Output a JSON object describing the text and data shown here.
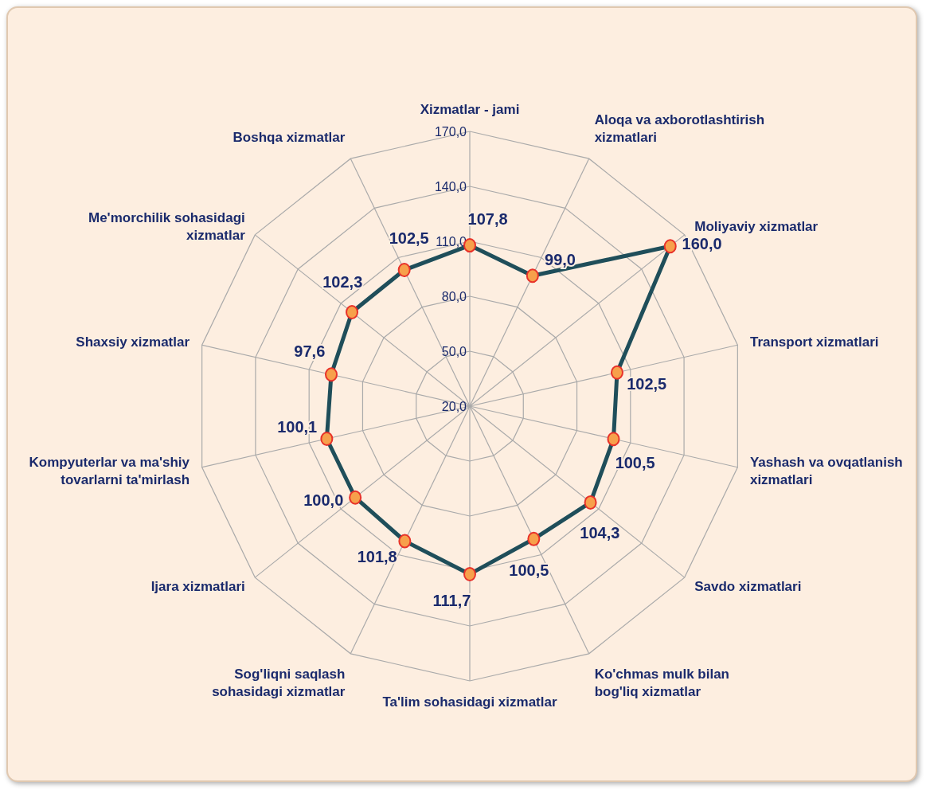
{
  "chart_data": {
    "type": "radar",
    "categories": [
      "Xizmatlar - jami",
      "Aloqa va axborotlashtirish\nxizmatlari",
      "Moliyaviy xizmatlar",
      "Transport xizmatlari",
      "Yashash va ovqatlanish\nxizmatlari",
      "Savdo xizmatlari",
      "Ko'chmas mulk bilan\nbog'liq xizmatlar",
      "Ta'lim sohasidagi xizmatlar",
      "Sog'liqni saqlash\nsohasidagi xizmatlar",
      "Ijara xizmatlari",
      "Kompyuterlar va ma'shiy\ntovarlarni ta'mirlash",
      "Shaxsiy xizmatlar",
      "Me'morchilik sohasidagi\nxizmatlar",
      "Boshqa xizmatlar"
    ],
    "series": [
      {
        "color": "#1f4e5a",
        "values": [
          107.8,
          99.0,
          160.0,
          102.5,
          100.5,
          104.3,
          100.5,
          111.7,
          101.8,
          100.0,
          100.1,
          97.6,
          102.3,
          102.5
        ],
        "value_labels": [
          "107,8",
          "99,0",
          "160,0",
          "102,5",
          "100,5",
          "104,3",
          "100,5",
          "111,7",
          "101,8",
          "100,0",
          "100,1",
          "97,6",
          "102,3",
          "102,5"
        ]
      }
    ],
    "ylim": [
      20,
      170
    ],
    "yticks": [
      {
        "value": 20,
        "label": "20,0"
      },
      {
        "value": 50,
        "label": "50,0"
      },
      {
        "value": 80,
        "label": "80,0"
      },
      {
        "value": 110,
        "label": "110,0"
      },
      {
        "value": 140,
        "label": "140,0"
      },
      {
        "value": 170,
        "label": "170,0"
      }
    ],
    "grid": true,
    "marker": "circle"
  }
}
